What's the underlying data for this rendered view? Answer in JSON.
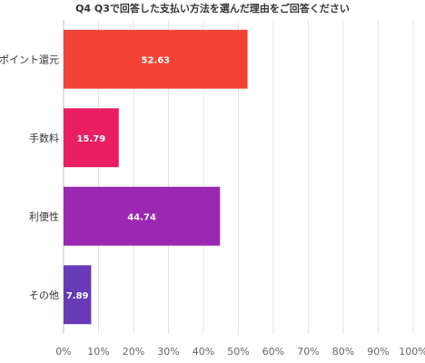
{
  "chart_data": {
    "type": "bar",
    "orientation": "horizontal",
    "title": "Q4 Q3で回答した支払い方法を選んだ理由をご回答ください",
    "categories": [
      "ポイント還元",
      "手数料",
      "利便性",
      "その他"
    ],
    "values": [
      52.63,
      15.79,
      44.74,
      7.89
    ],
    "value_labels": [
      "52.63",
      "15.79",
      "44.74",
      "7.89"
    ],
    "colors": [
      "#f44336",
      "#e91e63",
      "#9c27b0",
      "#673ab7"
    ],
    "xlim": [
      0,
      100
    ],
    "x_ticks": [
      "0%",
      "10%",
      "20%",
      "30%",
      "40%",
      "50%",
      "60%",
      "70%",
      "80%",
      "90%",
      "100%"
    ],
    "grid": true,
    "legend": "none"
  }
}
